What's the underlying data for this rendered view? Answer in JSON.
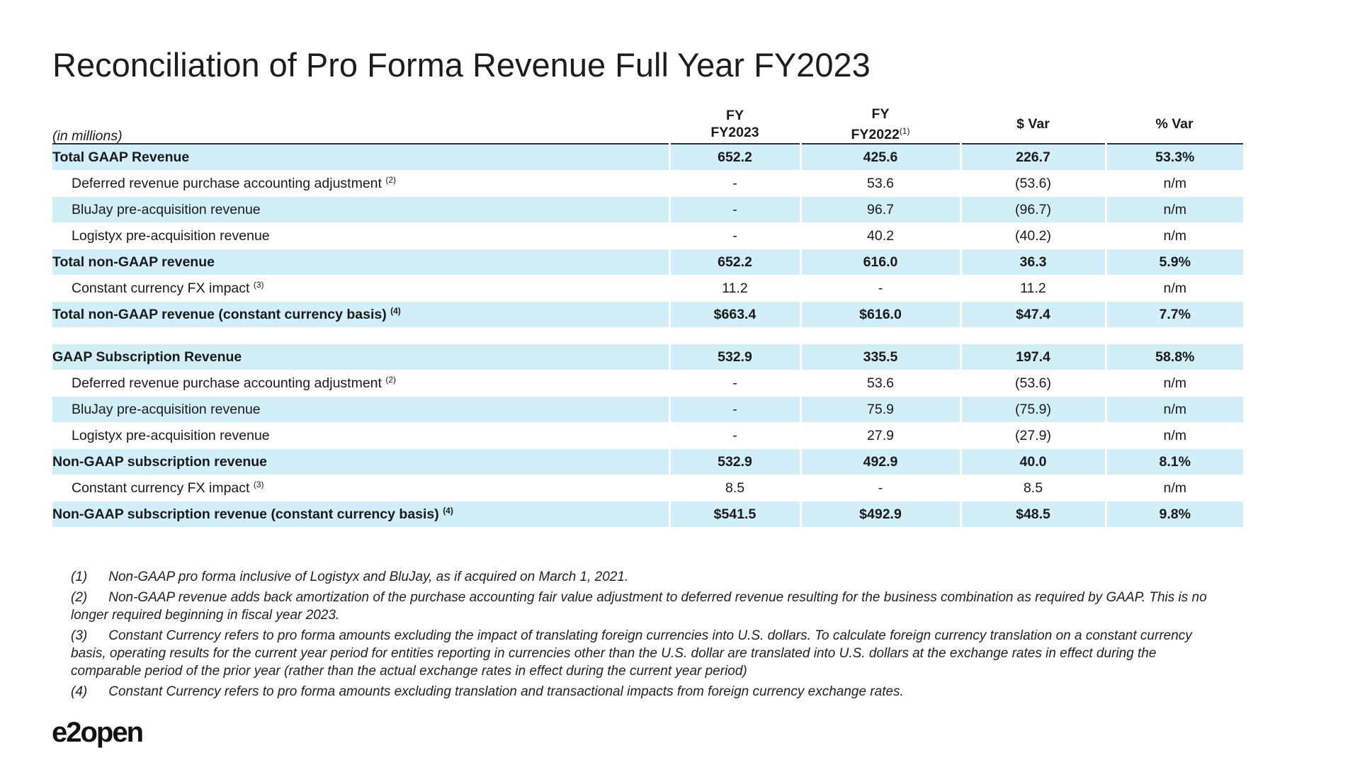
{
  "title": "Reconciliation of Pro Forma Revenue Full Year FY2023",
  "table": {
    "unit_note": "(in millions)",
    "columns": [
      {
        "lines": [
          "FY",
          "FY2023"
        ]
      },
      {
        "lines": [
          "FY",
          "FY2022"
        ],
        "note": "(1)"
      },
      {
        "lines": [
          "$ Var"
        ]
      },
      {
        "lines": [
          "% Var"
        ]
      }
    ],
    "sections": [
      {
        "rows": [
          {
            "label": "Total GAAP Revenue",
            "bold": true,
            "cells": [
              "652.2",
              "425.6",
              "226.7",
              "53.3%"
            ]
          },
          {
            "label": "Deferred revenue purchase accounting adjustment",
            "note": "(2)",
            "bold": false,
            "cells": [
              "-",
              "53.6",
              "(53.6)",
              "n/m"
            ]
          },
          {
            "label": "BluJay pre-acquisition revenue",
            "bold": false,
            "cells": [
              "-",
              "96.7",
              "(96.7)",
              "n/m"
            ]
          },
          {
            "label": "Logistyx pre-acquisition revenue",
            "bold": false,
            "cells": [
              "-",
              "40.2",
              "(40.2)",
              "n/m"
            ]
          },
          {
            "label": "Total non-GAAP revenue",
            "bold": true,
            "cells": [
              "652.2",
              "616.0",
              "36.3",
              "5.9%"
            ]
          },
          {
            "label": "Constant currency FX impact",
            "note": "(3)",
            "bold": false,
            "cells": [
              "11.2",
              "-",
              "11.2",
              "n/m"
            ]
          },
          {
            "label": "Total non-GAAP revenue (constant currency basis)",
            "note": "(4)",
            "bold": true,
            "cells": [
              "$663.4",
              "$616.0",
              "$47.4",
              "7.7%"
            ]
          }
        ]
      },
      {
        "rows": [
          {
            "label": "GAAP Subscription Revenue",
            "bold": true,
            "cells": [
              "532.9",
              "335.5",
              "197.4",
              "58.8%"
            ]
          },
          {
            "label": "Deferred revenue purchase accounting adjustment",
            "note": "(2)",
            "bold": false,
            "cells": [
              "-",
              "53.6",
              "(53.6)",
              "n/m"
            ]
          },
          {
            "label": "BluJay pre-acquisition revenue",
            "bold": false,
            "cells": [
              "-",
              "75.9",
              "(75.9)",
              "n/m"
            ]
          },
          {
            "label": "Logistyx pre-acquisition revenue",
            "bold": false,
            "cells": [
              "-",
              "27.9",
              "(27.9)",
              "n/m"
            ]
          },
          {
            "label": "Non-GAAP subscription revenue",
            "bold": true,
            "cells": [
              "532.9",
              "492.9",
              "40.0",
              "8.1%"
            ]
          },
          {
            "label": "Constant currency FX impact",
            "note": "(3)",
            "bold": false,
            "cells": [
              "8.5",
              "-",
              "8.5",
              "n/m"
            ]
          },
          {
            "label": "Non-GAAP subscription revenue (constant currency basis)",
            "note": "(4)",
            "bold": true,
            "cells": [
              "$541.5",
              "$492.9",
              "$48.5",
              "9.8%"
            ]
          }
        ]
      }
    ]
  },
  "footnotes": [
    {
      "marker": "(1)",
      "text": "Non-GAAP pro forma inclusive of Logistyx and BluJay, as if acquired on March 1, 2021."
    },
    {
      "marker": "(2)",
      "text": "Non-GAAP revenue adds back amortization of the purchase accounting fair value adjustment to deferred revenue resulting for the business combination as required by GAAP. This is no longer required beginning in fiscal year 2023."
    },
    {
      "marker": "(3)",
      "text": "Constant Currency refers to pro forma amounts excluding the impact of translating foreign currencies into U.S. dollars. To calculate foreign currency translation on a constant currency basis, operating results for the current year period for entities reporting in currencies other than the U.S. dollar are translated into U.S. dollars at the exchange rates in effect during the comparable period of the prior year (rather than the actual exchange rates in effect during the current year period)"
    },
    {
      "marker": "(4)",
      "text": "Constant Currency refers to pro forma amounts excluding translation and transactional impacts from foreign currency exchange rates."
    }
  ],
  "logo": "e2open"
}
